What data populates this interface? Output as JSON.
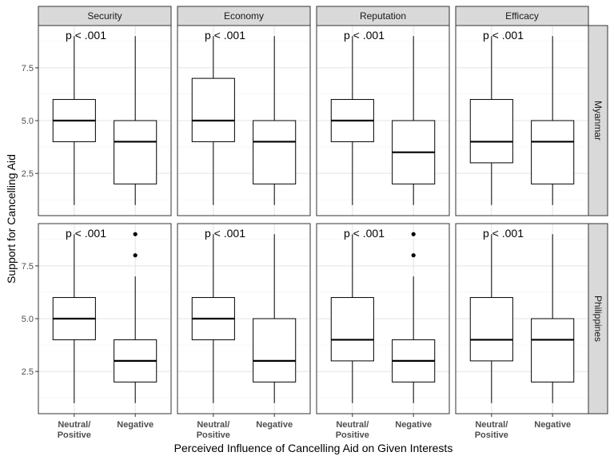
{
  "chart_data": {
    "type": "boxplot",
    "xlabel": "Perceived Influence of Cancelling Aid on Given Interests",
    "ylabel": "Support for Cancelling Aid",
    "categories": [
      "Neutral/\nPositive",
      "Negative"
    ],
    "facet_columns": [
      "Security",
      "Economy",
      "Reputation",
      "Efficacy"
    ],
    "facet_rows": [
      "Myanmar",
      "Philippines"
    ],
    "ylim": [
      0.5,
      9.5
    ],
    "yticks": [
      2.5,
      5.0,
      7.5
    ],
    "ytick_labels": [
      "2.5",
      "5.0",
      "7.5"
    ],
    "annotation": "p < .001",
    "grid": true,
    "panels": [
      {
        "row": "Myanmar",
        "col": "Security",
        "annotation": "p < .001",
        "boxes": [
          {
            "category": "Neutral/\nPositive",
            "min": 1,
            "q1": 4,
            "median": 5,
            "q3": 6,
            "max": 9,
            "outliers": []
          },
          {
            "category": "Negative",
            "min": 1,
            "q1": 2,
            "median": 4,
            "q3": 5,
            "max": 9,
            "outliers": []
          }
        ]
      },
      {
        "row": "Myanmar",
        "col": "Economy",
        "annotation": "p < .001",
        "boxes": [
          {
            "category": "Neutral/\nPositive",
            "min": 1,
            "q1": 4,
            "median": 5,
            "q3": 7,
            "max": 9,
            "outliers": []
          },
          {
            "category": "Negative",
            "min": 1,
            "q1": 2,
            "median": 4,
            "q3": 5,
            "max": 9,
            "outliers": []
          }
        ]
      },
      {
        "row": "Myanmar",
        "col": "Reputation",
        "annotation": "p < .001",
        "boxes": [
          {
            "category": "Neutral/\nPositive",
            "min": 1,
            "q1": 4,
            "median": 5,
            "q3": 6,
            "max": 9,
            "outliers": []
          },
          {
            "category": "Negative",
            "min": 1,
            "q1": 2,
            "median": 3.5,
            "q3": 5,
            "max": 9,
            "outliers": []
          }
        ]
      },
      {
        "row": "Myanmar",
        "col": "Efficacy",
        "annotation": "p < .001",
        "boxes": [
          {
            "category": "Neutral/\nPositive",
            "min": 1,
            "q1": 3,
            "median": 4,
            "q3": 6,
            "max": 9,
            "outliers": []
          },
          {
            "category": "Negative",
            "min": 1,
            "q1": 2,
            "median": 4,
            "q3": 5,
            "max": 9,
            "outliers": []
          }
        ]
      },
      {
        "row": "Philippines",
        "col": "Security",
        "annotation": "p < .001",
        "boxes": [
          {
            "category": "Neutral/\nPositive",
            "min": 1,
            "q1": 4,
            "median": 5,
            "q3": 6,
            "max": 9,
            "outliers": []
          },
          {
            "category": "Negative",
            "min": 1,
            "q1": 2,
            "median": 3,
            "q3": 4,
            "max": 7,
            "outliers": [
              8,
              9
            ]
          }
        ]
      },
      {
        "row": "Philippines",
        "col": "Economy",
        "annotation": "p < .001",
        "boxes": [
          {
            "category": "Neutral/\nPositive",
            "min": 1,
            "q1": 4,
            "median": 5,
            "q3": 6,
            "max": 9,
            "outliers": []
          },
          {
            "category": "Negative",
            "min": 1,
            "q1": 2,
            "median": 3,
            "q3": 5,
            "max": 9,
            "outliers": []
          }
        ]
      },
      {
        "row": "Philippines",
        "col": "Reputation",
        "annotation": "p < .001",
        "boxes": [
          {
            "category": "Neutral/\nPositive",
            "min": 1,
            "q1": 3,
            "median": 4,
            "q3": 6,
            "max": 9,
            "outliers": []
          },
          {
            "category": "Negative",
            "min": 1,
            "q1": 2,
            "median": 3,
            "q3": 4,
            "max": 7,
            "outliers": [
              8,
              9
            ]
          }
        ]
      },
      {
        "row": "Philippines",
        "col": "Efficacy",
        "annotation": "p < .001",
        "boxes": [
          {
            "category": "Neutral/\nPositive",
            "min": 1,
            "q1": 3,
            "median": 4,
            "q3": 6,
            "max": 9,
            "outliers": []
          },
          {
            "category": "Negative",
            "min": 1,
            "q1": 2,
            "median": 4,
            "q3": 5,
            "max": 9,
            "outliers": []
          }
        ]
      }
    ]
  }
}
